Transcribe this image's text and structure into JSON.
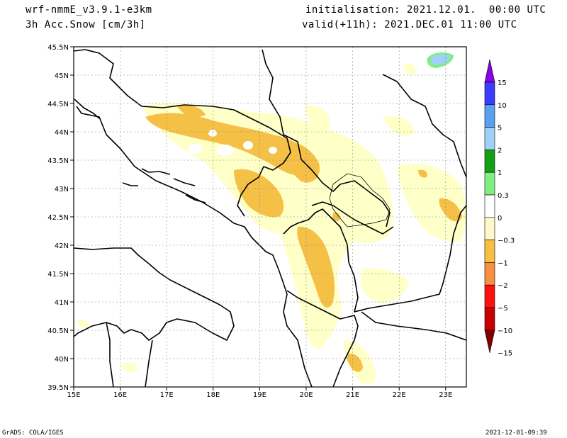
{
  "header": {
    "model": "wrf-nmmE_v3.9.1-e3km",
    "field": "3h Acc.Snow [cm/3h]",
    "init": "initialisation: 2021.12.01.  00:00 UTC",
    "valid": "valid(+11h): 2021.DEC.01 11:00 UTC"
  },
  "footer": {
    "left": "GrADS: COLA/IGES",
    "right": "2021-12-01-09:39"
  },
  "map": {
    "lon_labels": [
      "15E",
      "16E",
      "17E",
      "18E",
      "19E",
      "20E",
      "21E",
      "22E",
      "23E"
    ],
    "lat_labels": [
      "45.5N",
      "45N",
      "44.5N",
      "44N",
      "43.5N",
      "43N",
      "42.5N",
      "42N",
      "41.5N",
      "41N",
      "40.5N",
      "40N",
      "39.5N"
    ]
  },
  "legend": {
    "colors": [
      "#8a00e8",
      "#3c3cff",
      "#5aa0f0",
      "#9ed0f8",
      "#14a014",
      "#80ef80",
      "#ffffff",
      "#fff8c8",
      "#f8c040",
      "#f89040",
      "#ff1010",
      "#c80000",
      "#820000"
    ],
    "labels": [
      "15",
      "10",
      "5",
      "2",
      "1",
      "0.3",
      "0",
      "−0.3",
      "−1",
      "−2",
      "−5",
      "−10",
      "−15"
    ]
  },
  "colors": {
    "light_yellow": "#ffffc8",
    "orange": "#f5c046",
    "light_blue": "#9ed0f8",
    "green": "#80ef80"
  }
}
